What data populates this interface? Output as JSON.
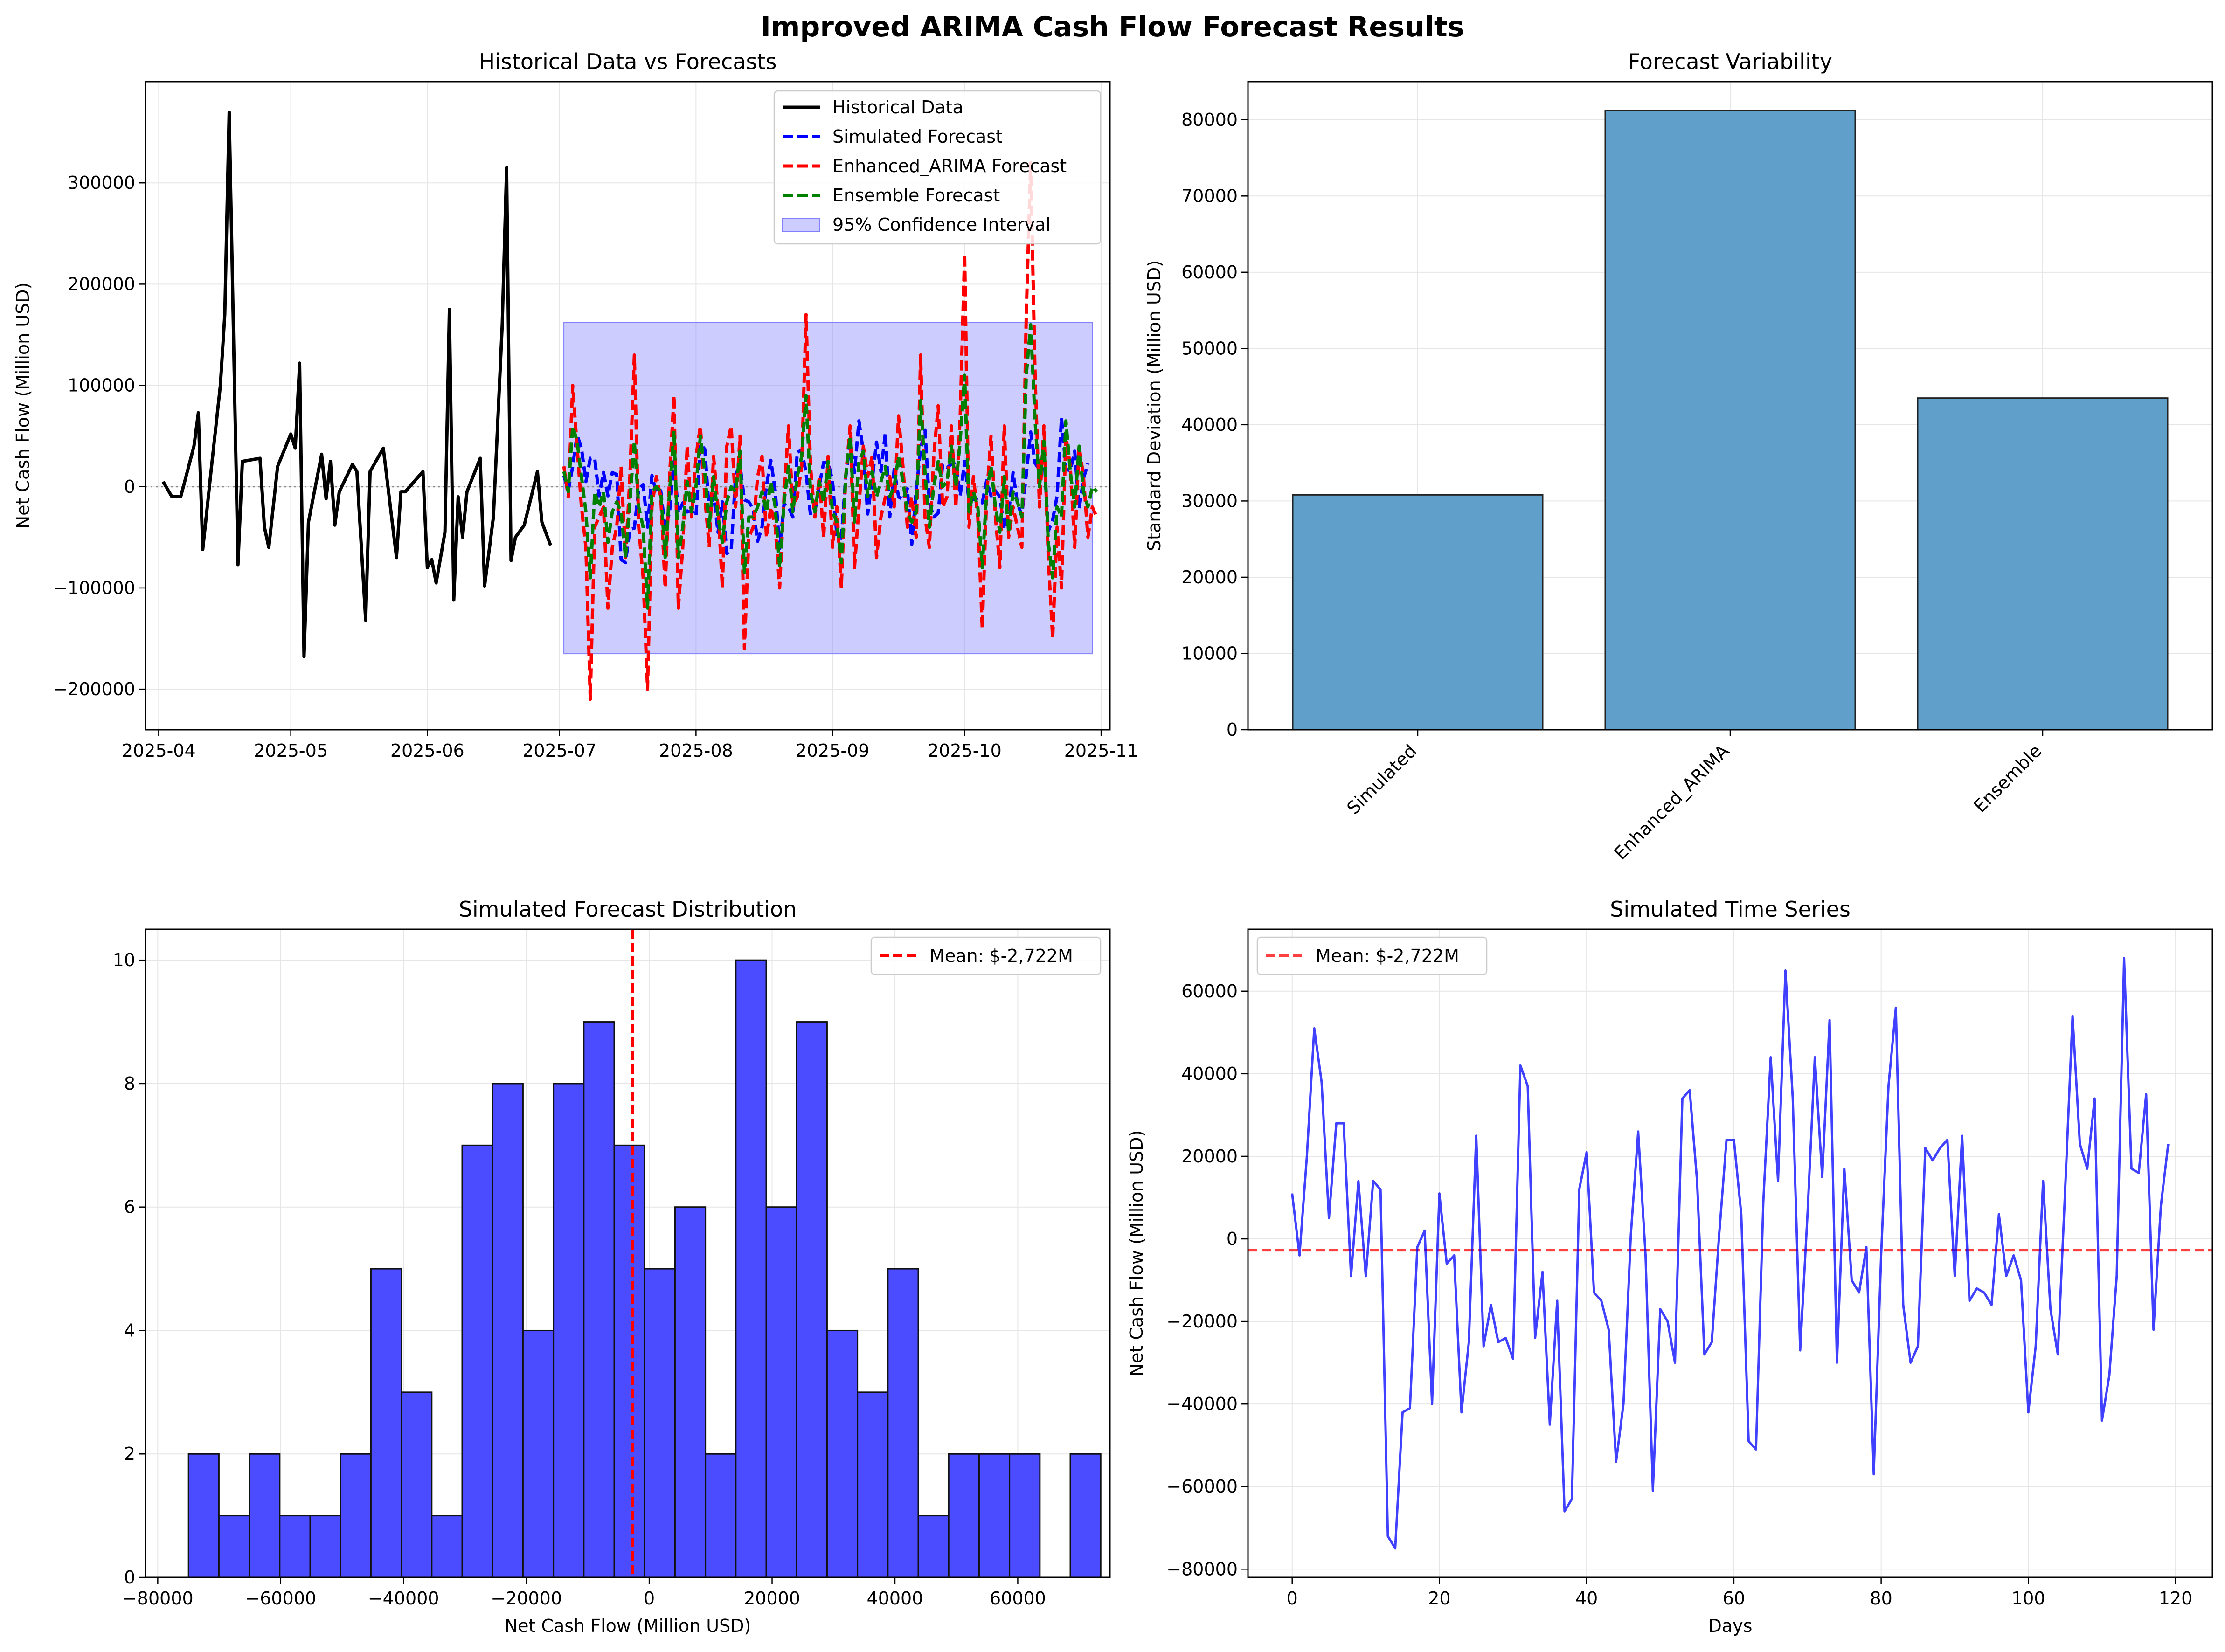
{
  "figure": {
    "suptitle": "Improved ARIMA Cash Flow Forecast Results"
  },
  "colors": {
    "historical": "#000000",
    "simulated": "#0000ff",
    "arima": "#ff0000",
    "ensemble": "#008000",
    "ci_fill": "#8080ff",
    "bars": "#5f9fca",
    "hist": "#4b4bff",
    "grid": "#e6e6e6"
  },
  "chart_data": [
    {
      "type": "line",
      "title": "Historical Data vs Forecasts",
      "xlabel": "",
      "ylabel": "Net Cash Flow (Million USD)",
      "x_ticks": [
        "2025-04",
        "2025-05",
        "2025-06",
        "2025-07",
        "2025-08",
        "2025-09",
        "2025-10",
        "2025-11"
      ],
      "x_range": [
        "2025-03-29",
        "2025-11-03"
      ],
      "y_ticks": [
        -200000,
        -100000,
        0,
        100000,
        200000,
        300000
      ],
      "ylim": [
        -240000,
        400000
      ],
      "grid": true,
      "legend_position": "upper right",
      "zero_line": true,
      "confidence_interval": {
        "name": "95% Confidence Interval",
        "start": "2025-07-02",
        "end": "2025-10-30",
        "lower": -165000,
        "upper": 162000
      },
      "series": [
        {
          "name": "Historical Data",
          "style": "solid",
          "points": [
            [
              "2025-04-02",
              5000
            ],
            [
              "2025-04-04",
              -10000
            ],
            [
              "2025-04-06",
              -10000
            ],
            [
              "2025-04-09",
              40000
            ],
            [
              "2025-04-10",
              73000
            ],
            [
              "2025-04-11",
              -62000
            ],
            [
              "2025-04-13",
              20000
            ],
            [
              "2025-04-15",
              100000
            ],
            [
              "2025-04-16",
              170000
            ],
            [
              "2025-04-17",
              370000
            ],
            [
              "2025-04-19",
              -77000
            ],
            [
              "2025-04-20",
              25000
            ],
            [
              "2025-04-24",
              28000
            ],
            [
              "2025-04-25",
              -40000
            ],
            [
              "2025-04-26",
              -60000
            ],
            [
              "2025-04-28",
              20000
            ],
            [
              "2025-05-01",
              52000
            ],
            [
              "2025-05-02",
              38000
            ],
            [
              "2025-05-03",
              122000
            ],
            [
              "2025-05-04",
              -168000
            ],
            [
              "2025-05-05",
              -35000
            ],
            [
              "2025-05-08",
              32000
            ],
            [
              "2025-05-09",
              -12000
            ],
            [
              "2025-05-10",
              25000
            ],
            [
              "2025-05-11",
              -38000
            ],
            [
              "2025-05-12",
              -5000
            ],
            [
              "2025-05-15",
              22000
            ],
            [
              "2025-05-16",
              15000
            ],
            [
              "2025-05-18",
              -132000
            ],
            [
              "2025-05-19",
              15000
            ],
            [
              "2025-05-22",
              38000
            ],
            [
              "2025-05-25",
              -70000
            ],
            [
              "2025-05-26",
              -5000
            ],
            [
              "2025-05-27",
              -5000
            ],
            [
              "2025-05-31",
              15000
            ],
            [
              "2025-06-01",
              -80000
            ],
            [
              "2025-06-02",
              -72000
            ],
            [
              "2025-06-03",
              -95000
            ],
            [
              "2025-06-05",
              -45000
            ],
            [
              "2025-06-06",
              175000
            ],
            [
              "2025-06-07",
              -112000
            ],
            [
              "2025-06-08",
              -10000
            ],
            [
              "2025-06-09",
              -50000
            ],
            [
              "2025-06-10",
              -5000
            ],
            [
              "2025-06-13",
              28000
            ],
            [
              "2025-06-14",
              -98000
            ],
            [
              "2025-06-16",
              -30000
            ],
            [
              "2025-06-18",
              160000
            ],
            [
              "2025-06-19",
              315000
            ],
            [
              "2025-06-20",
              -73000
            ],
            [
              "2025-06-21",
              -50000
            ],
            [
              "2025-06-23",
              -38000
            ],
            [
              "2025-06-26",
              15000
            ],
            [
              "2025-06-27",
              -35000
            ],
            [
              "2025-06-29",
              -58000
            ]
          ]
        },
        {
          "name": "Simulated Forecast",
          "style": "dashed",
          "start": "2025-07-02",
          "values": [
            11000,
            -4000,
            20000,
            51000,
            38000,
            5000,
            28000,
            28000,
            -9000,
            14000,
            -9000,
            14000,
            12000,
            -72000,
            -75000,
            -42000,
            -41000,
            -2000,
            2000,
            -40000,
            11000,
            -6000,
            -4000,
            -42000,
            -25000,
            25000,
            -26000,
            -16000,
            -25000,
            -24000,
            -29000,
            42000,
            37000,
            -24000,
            -8000,
            -45000,
            -15000,
            -66000,
            -63000,
            12000,
            21000,
            -13000,
            -15000,
            -22000,
            -54000,
            -40000,
            1000,
            26000,
            -4000,
            -61000,
            -17000,
            -20000,
            -30000,
            34000,
            36000,
            14000,
            -28000,
            -25000,
            1000,
            24000,
            24000,
            6000,
            -49000,
            -51000,
            9000,
            44000,
            14000,
            65000,
            34000,
            -27000,
            6000,
            44000,
            15000,
            53000,
            -30000,
            17000,
            -10000,
            -13000,
            -2000,
            -57000,
            -4000,
            37000,
            56000,
            -16000,
            -30000,
            -26000,
            22000,
            19000,
            22000,
            24000,
            -9000,
            25000,
            -15000,
            -12000,
            -13000,
            -16000,
            6000,
            -9000,
            -4000,
            -10000,
            -42000,
            -26000,
            14000,
            -17000,
            -28000,
            12000,
            54000,
            23000,
            17000,
            34000,
            -44000,
            -33000,
            -9000,
            68000,
            17000,
            16000,
            35000,
            -22000,
            8000,
            23000
          ]
        },
        {
          "name": "Enhanced_ARIMA Forecast",
          "style": "dashed",
          "start": "2025-07-02",
          "values": [
            20000,
            -10000,
            100000,
            40000,
            -20000,
            -60000,
            -210000,
            -40000,
            -30000,
            -20000,
            -120000,
            -60000,
            -40000,
            20000,
            -70000,
            10000,
            130000,
            -40000,
            -90000,
            -200000,
            -20000,
            10000,
            -10000,
            -100000,
            10000,
            90000,
            -120000,
            -60000,
            40000,
            -30000,
            30000,
            60000,
            -10000,
            -60000,
            30000,
            -20000,
            -100000,
            40000,
            60000,
            -20000,
            50000,
            -160000,
            -50000,
            -40000,
            10000,
            30000,
            -50000,
            -20000,
            -40000,
            -100000,
            -10000,
            60000,
            -20000,
            -10000,
            20000,
            170000,
            20000,
            -30000,
            10000,
            -50000,
            30000,
            -60000,
            -20000,
            -100000,
            10000,
            60000,
            -80000,
            -20000,
            40000,
            10000,
            30000,
            -70000,
            -30000,
            -10000,
            10000,
            -20000,
            70000,
            20000,
            -40000,
            -10000,
            -50000,
            130000,
            -30000,
            -60000,
            30000,
            80000,
            -20000,
            -10000,
            60000,
            -20000,
            70000,
            230000,
            -40000,
            10000,
            -30000,
            -140000,
            -10000,
            50000,
            -30000,
            -80000,
            60000,
            -50000,
            -20000,
            -40000,
            -60000,
            170000,
            320000,
            110000,
            -20000,
            60000,
            -70000,
            -150000,
            -40000,
            -100000,
            50000,
            20000,
            -60000,
            40000,
            10000,
            -50000,
            -20000,
            -30000
          ]
        },
        {
          "name": "Ensemble Forecast",
          "style": "dashed",
          "start": "2025-07-02",
          "values": [
            15000,
            -5000,
            60000,
            45000,
            10000,
            -25000,
            -90000,
            -5000,
            -20000,
            -5000,
            -55000,
            -25000,
            -15000,
            -25000,
            -70000,
            -15000,
            45000,
            -20000,
            -40000,
            -120000,
            -5000,
            0,
            -5000,
            -70000,
            -5000,
            55000,
            -70000,
            -40000,
            5000,
            -25000,
            0,
            50000,
            15000,
            -40000,
            10000,
            -30000,
            -55000,
            -15000,
            0,
            -5000,
            35000,
            -85000,
            -30000,
            -30000,
            -20000,
            -5000,
            -25000,
            5000,
            -20000,
            -80000,
            -15000,
            20000,
            -25000,
            10000,
            30000,
            90000,
            -5000,
            -25000,
            5000,
            -15000,
            25000,
            -25000,
            -35000,
            -75000,
            10000,
            50000,
            -35000,
            25000,
            35000,
            -10000,
            15000,
            -10000,
            5000,
            20000,
            -10000,
            0,
            30000,
            5000,
            -25000,
            -35000,
            -25000,
            85000,
            15000,
            -40000,
            0,
            25000,
            0,
            5000,
            40000,
            0,
            45000,
            110000,
            -25000,
            -5000,
            -20000,
            -80000,
            -5000,
            20000,
            -20000,
            -45000,
            10000,
            -45000,
            -5000,
            -15000,
            -30000,
            110000,
            160000,
            65000,
            0,
            45000,
            -55000,
            -90000,
            -20000,
            -30000,
            65000,
            15000,
            -20000,
            40000,
            -5000,
            -20000,
            0,
            -5000
          ]
        }
      ]
    },
    {
      "type": "bar",
      "title": "Forecast Variability",
      "xlabel": "",
      "ylabel": "Standard Deviation (Million USD)",
      "categories": [
        "Simulated",
        "Enhanced_ARIMA",
        "Ensemble"
      ],
      "values": [
        30800,
        81200,
        43500
      ],
      "y_ticks": [
        0,
        10000,
        20000,
        30000,
        40000,
        50000,
        60000,
        70000,
        80000
      ],
      "ylim": [
        0,
        85000
      ],
      "grid": true
    },
    {
      "type": "bar",
      "subtype": "histogram",
      "title": "Simulated Forecast Distribution",
      "xlabel": "Net Cash Flow (Million USD)",
      "ylabel": "",
      "bin_start": -75000,
      "bin_width": 4950,
      "values": [
        2,
        1,
        2,
        1,
        1,
        2,
        5,
        3,
        1,
        7,
        8,
        4,
        8,
        9,
        7,
        5,
        6,
        2,
        10,
        6,
        9,
        4,
        3,
        5,
        1,
        2,
        2,
        2,
        0,
        2
      ],
      "x_ticks": [
        -80000,
        -60000,
        -40000,
        -20000,
        0,
        20000,
        40000,
        60000
      ],
      "xlim": [
        -82000,
        75000
      ],
      "y_ticks": [
        0,
        2,
        4,
        6,
        8,
        10
      ],
      "ylim": [
        0,
        10.5
      ],
      "mean_line": {
        "value": -2722,
        "label": "Mean: $-2,722M"
      },
      "grid": true,
      "legend_position": "upper right"
    },
    {
      "type": "line",
      "title": "Simulated Time Series",
      "xlabel": "Days",
      "ylabel": "Net Cash Flow (Million USD)",
      "x_ticks": [
        0,
        20,
        40,
        60,
        80,
        100,
        120
      ],
      "xlim": [
        -6,
        125
      ],
      "y_ticks": [
        -80000,
        -60000,
        -40000,
        -20000,
        0,
        20000,
        40000,
        60000
      ],
      "ylim": [
        -82000,
        75000
      ],
      "mean_line": {
        "value": -2722,
        "label": "Mean: $-2,722M"
      },
      "grid": true,
      "legend_position": "upper left",
      "series": [
        {
          "name": "Simulated",
          "values": [
            11000,
            -4000,
            20000,
            51000,
            38000,
            5000,
            28000,
            28000,
            -9000,
            14000,
            -9000,
            14000,
            12000,
            -72000,
            -75000,
            -42000,
            -41000,
            -2000,
            2000,
            -40000,
            11000,
            -6000,
            -4000,
            -42000,
            -25000,
            25000,
            -26000,
            -16000,
            -25000,
            -24000,
            -29000,
            42000,
            37000,
            -24000,
            -8000,
            -45000,
            -15000,
            -66000,
            -63000,
            12000,
            21000,
            -13000,
            -15000,
            -22000,
            -54000,
            -40000,
            1000,
            26000,
            -4000,
            -61000,
            -17000,
            -20000,
            -30000,
            34000,
            36000,
            14000,
            -28000,
            -25000,
            1000,
            24000,
            24000,
            6000,
            -49000,
            -51000,
            9000,
            44000,
            14000,
            65000,
            34000,
            -27000,
            6000,
            44000,
            15000,
            53000,
            -30000,
            17000,
            -10000,
            -13000,
            -2000,
            -57000,
            -4000,
            37000,
            56000,
            -16000,
            -30000,
            -26000,
            22000,
            19000,
            22000,
            24000,
            -9000,
            25000,
            -15000,
            -12000,
            -13000,
            -16000,
            6000,
            -9000,
            -4000,
            -10000,
            -42000,
            -26000,
            14000,
            -17000,
            -28000,
            12000,
            54000,
            23000,
            17000,
            34000,
            -44000,
            -33000,
            -9000,
            68000,
            17000,
            16000,
            35000,
            -22000,
            8000,
            23000
          ]
        }
      ]
    }
  ]
}
